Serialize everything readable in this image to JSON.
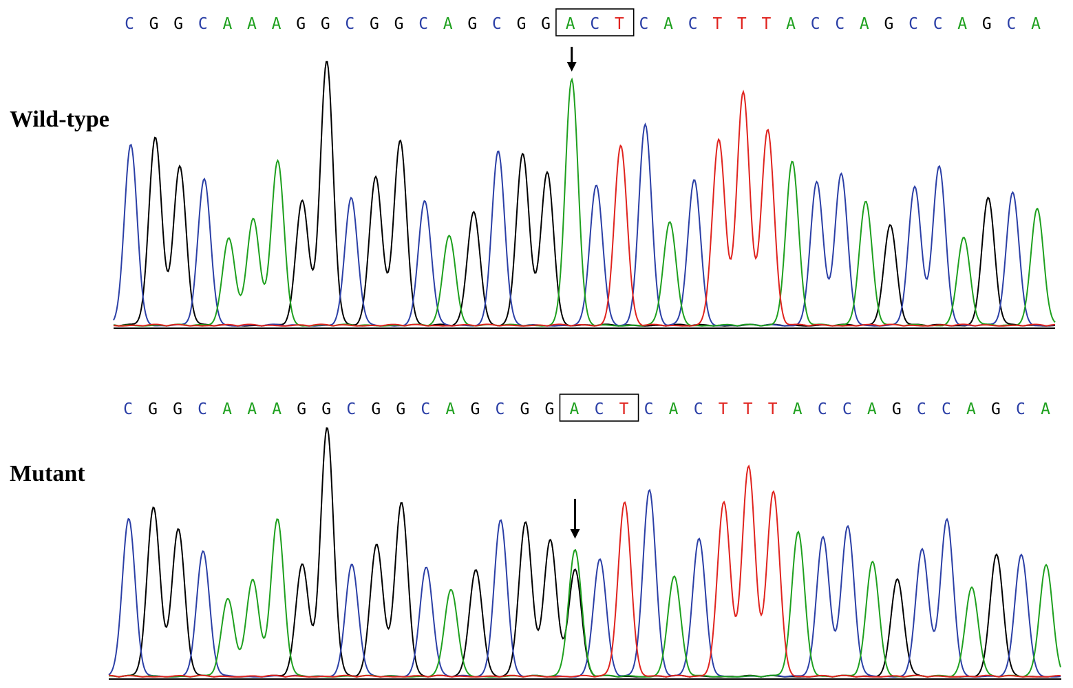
{
  "colors": {
    "A": "#1ea01e",
    "C": "#2b3fa6",
    "G": "#000000",
    "T": "#e0231e"
  },
  "panels": [
    {
      "id": "wt",
      "label": "Wild-type",
      "sequence": [
        "C",
        "G",
        "G",
        "C",
        "A",
        "A",
        "A",
        "G",
        "G",
        "C",
        "G",
        "G",
        "C",
        "A",
        "G",
        "C",
        "G",
        "G",
        "A",
        "C",
        "T",
        "C",
        "A",
        "C",
        "T",
        "T",
        "T",
        "A",
        "C",
        "C",
        "A",
        "G",
        "C",
        "C",
        "A",
        "G",
        "C",
        "A"
      ],
      "boxed_codon": [
        18,
        20
      ],
      "arrow_at": 18,
      "peaks": [
        {
          "base": "C",
          "h": 0.68
        },
        {
          "base": "G",
          "h": 0.71
        },
        {
          "base": "G",
          "h": 0.6
        },
        {
          "base": "C",
          "h": 0.55
        },
        {
          "base": "A",
          "h": 0.33
        },
        {
          "base": "A",
          "h": 0.4
        },
        {
          "base": "A",
          "h": 0.62
        },
        {
          "base": "G",
          "h": 0.47
        },
        {
          "base": "G",
          "h": 1.0
        },
        {
          "base": "C",
          "h": 0.48
        },
        {
          "base": "G",
          "h": 0.56
        },
        {
          "base": "G",
          "h": 0.7
        },
        {
          "base": "C",
          "h": 0.47
        },
        {
          "base": "A",
          "h": 0.34
        },
        {
          "base": "G",
          "h": 0.43
        },
        {
          "base": "C",
          "h": 0.66
        },
        {
          "base": "G",
          "h": 0.65
        },
        {
          "base": "G",
          "h": 0.58
        },
        {
          "base": "A",
          "h": 0.93
        },
        {
          "base": "C",
          "h": 0.53
        },
        {
          "base": "T",
          "h": 0.68
        },
        {
          "base": "C",
          "h": 0.76
        },
        {
          "base": "A",
          "h": 0.39
        },
        {
          "base": "C",
          "h": 0.55
        },
        {
          "base": "T",
          "h": 0.7
        },
        {
          "base": "T",
          "h": 0.88
        },
        {
          "base": "T",
          "h": 0.74
        },
        {
          "base": "A",
          "h": 0.62
        },
        {
          "base": "C",
          "h": 0.54
        },
        {
          "base": "C",
          "h": 0.57
        },
        {
          "base": "A",
          "h": 0.47
        },
        {
          "base": "G",
          "h": 0.38
        },
        {
          "base": "C",
          "h": 0.52
        },
        {
          "base": "C",
          "h": 0.6
        },
        {
          "base": "A",
          "h": 0.33
        },
        {
          "base": "G",
          "h": 0.48
        },
        {
          "base": "C",
          "h": 0.5
        },
        {
          "base": "A",
          "h": 0.44
        }
      ]
    },
    {
      "id": "mut",
      "label": "Mutant",
      "sequence": [
        "C",
        "G",
        "G",
        "C",
        "A",
        "A",
        "A",
        "G",
        "G",
        "C",
        "G",
        "G",
        "C",
        "A",
        "G",
        "C",
        "G",
        "G",
        "A",
        "C",
        "T",
        "C",
        "A",
        "C",
        "T",
        "T",
        "T",
        "A",
        "C",
        "C",
        "A",
        "G",
        "C",
        "C",
        "A",
        "G",
        "C",
        "A"
      ],
      "boxed_codon": [
        18,
        20
      ],
      "arrow_at": 18,
      "peaks": [
        {
          "base": "C",
          "h": 0.63
        },
        {
          "base": "G",
          "h": 0.68
        },
        {
          "base": "G",
          "h": 0.59
        },
        {
          "base": "C",
          "h": 0.5
        },
        {
          "base": "A",
          "h": 0.31
        },
        {
          "base": "A",
          "h": 0.39
        },
        {
          "base": "A",
          "h": 0.63
        },
        {
          "base": "G",
          "h": 0.45
        },
        {
          "base": "G",
          "h": 1.0
        },
        {
          "base": "C",
          "h": 0.45
        },
        {
          "base": "G",
          "h": 0.53
        },
        {
          "base": "G",
          "h": 0.7
        },
        {
          "base": "C",
          "h": 0.44
        },
        {
          "base": "A",
          "h": 0.35
        },
        {
          "base": "G",
          "h": 0.43
        },
        {
          "base": "C",
          "h": 0.63
        },
        {
          "base": "G",
          "h": 0.62
        },
        {
          "base": "G",
          "h": 0.55
        },
        {
          "base": "A",
          "h": 0.51,
          "secondary": {
            "base": "G",
            "h": 0.43
          }
        },
        {
          "base": "C",
          "h": 0.47
        },
        {
          "base": "T",
          "h": 0.7
        },
        {
          "base": "C",
          "h": 0.75
        },
        {
          "base": "A",
          "h": 0.4
        },
        {
          "base": "C",
          "h": 0.55
        },
        {
          "base": "T",
          "h": 0.7
        },
        {
          "base": "T",
          "h": 0.84
        },
        {
          "base": "T",
          "h": 0.74
        },
        {
          "base": "A",
          "h": 0.58
        },
        {
          "base": "C",
          "h": 0.56
        },
        {
          "base": "C",
          "h": 0.6
        },
        {
          "base": "A",
          "h": 0.46
        },
        {
          "base": "G",
          "h": 0.39
        },
        {
          "base": "C",
          "h": 0.51
        },
        {
          "base": "C",
          "h": 0.63
        },
        {
          "base": "A",
          "h": 0.36
        },
        {
          "base": "G",
          "h": 0.49
        },
        {
          "base": "C",
          "h": 0.49
        },
        {
          "base": "A",
          "h": 0.45
        }
      ]
    }
  ]
}
